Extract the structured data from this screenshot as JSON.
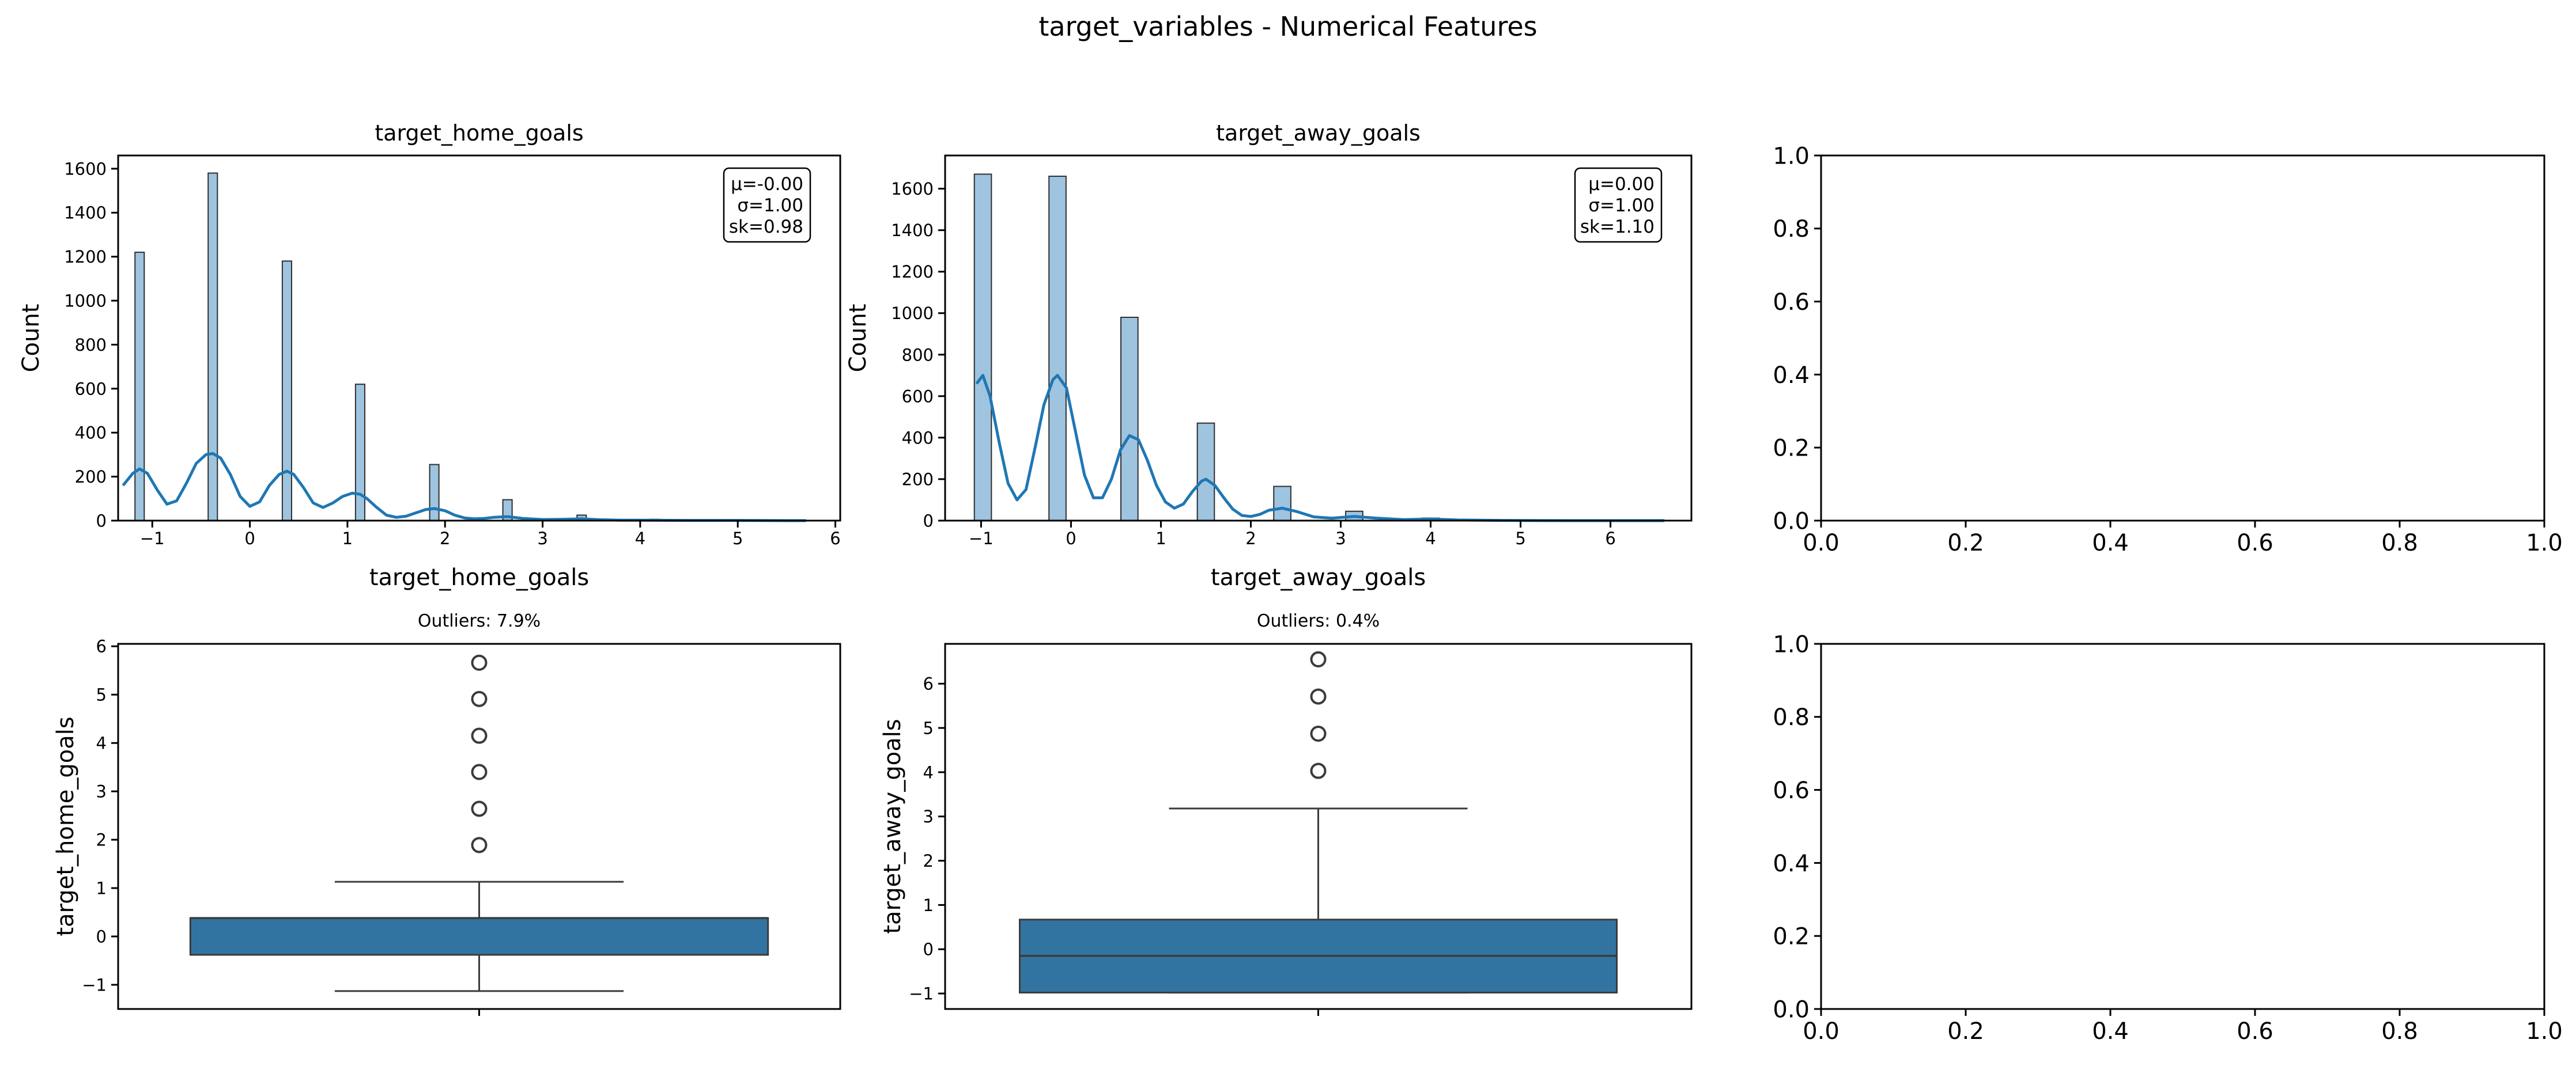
{
  "figure": {
    "title": "target_variables - Numerical Features"
  },
  "colors": {
    "hist_fill": "#9ec4e0",
    "kde_line": "#1f77b4",
    "box_fill": "#3274a1",
    "box_edge": "#3b3b3b",
    "axis": "#000000"
  },
  "chart_data": [
    {
      "type": "bar",
      "subtype": "histogram_with_kde",
      "title": "target_home_goals",
      "xlabel": "target_home_goals",
      "ylabel": "Count",
      "xlim": [
        -1.35,
        6.05
      ],
      "ylim": [
        0,
        1660
      ],
      "xticks": [
        -1,
        0,
        1,
        2,
        3,
        4,
        5,
        6
      ],
      "yticks": [
        0,
        200,
        400,
        600,
        800,
        1000,
        1200,
        1400,
        1600
      ],
      "bin_width": 0.095,
      "bars": [
        {
          "x": -1.13,
          "count": 1220
        },
        {
          "x": -0.38,
          "count": 1580
        },
        {
          "x": 0.38,
          "count": 1180
        },
        {
          "x": 1.13,
          "count": 620
        },
        {
          "x": 1.89,
          "count": 255
        },
        {
          "x": 2.64,
          "count": 95
        },
        {
          "x": 3.4,
          "count": 25
        },
        {
          "x": 4.15,
          "count": 6
        },
        {
          "x": 4.91,
          "count": 2
        },
        {
          "x": 5.66,
          "count": 1
        }
      ],
      "kde": {
        "x": [
          -1.3,
          -1.2,
          -1.13,
          -1.05,
          -0.95,
          -0.85,
          -0.75,
          -0.65,
          -0.55,
          -0.45,
          -0.38,
          -0.3,
          -0.2,
          -0.1,
          0.0,
          0.1,
          0.2,
          0.3,
          0.38,
          0.45,
          0.55,
          0.65,
          0.75,
          0.85,
          0.95,
          1.05,
          1.13,
          1.2,
          1.3,
          1.4,
          1.5,
          1.6,
          1.7,
          1.8,
          1.89,
          2.0,
          2.1,
          2.2,
          2.3,
          2.4,
          2.5,
          2.64,
          2.8,
          3.0,
          3.2,
          3.4,
          3.6,
          3.8,
          4.0,
          4.5,
          5.0,
          5.5,
          5.7
        ],
        "y": [
          160,
          215,
          235,
          215,
          140,
          75,
          90,
          170,
          260,
          300,
          305,
          285,
          210,
          110,
          65,
          85,
          160,
          210,
          225,
          210,
          150,
          80,
          60,
          80,
          110,
          125,
          120,
          100,
          60,
          25,
          15,
          20,
          35,
          50,
          55,
          45,
          25,
          12,
          8,
          10,
          15,
          18,
          10,
          5,
          6,
          8,
          4,
          2,
          2,
          1,
          1,
          0,
          0
        ]
      },
      "annotation": [
        "μ=-0.00",
        "σ=1.00",
        "sk=0.98"
      ]
    },
    {
      "type": "bar",
      "subtype": "histogram_with_kde",
      "title": "target_away_goals",
      "xlabel": "target_away_goals",
      "ylabel": "Count",
      "xlim": [
        -1.4,
        6.9
      ],
      "ylim": [
        0,
        1760
      ],
      "xticks": [
        -1,
        0,
        1,
        2,
        3,
        4,
        5,
        6
      ],
      "yticks": [
        0,
        200,
        400,
        600,
        800,
        1000,
        1200,
        1400,
        1600
      ],
      "bin_width": 0.19,
      "bars": [
        {
          "x": -0.98,
          "count": 1670
        },
        {
          "x": -0.15,
          "count": 1660
        },
        {
          "x": 0.65,
          "count": 980
        },
        {
          "x": 1.5,
          "count": 470
        },
        {
          "x": 2.35,
          "count": 165
        },
        {
          "x": 3.15,
          "count": 45
        },
        {
          "x": 4.0,
          "count": 12
        },
        {
          "x": 4.85,
          "count": 3
        },
        {
          "x": 5.7,
          "count": 1
        },
        {
          "x": 6.55,
          "count": 1
        }
      ],
      "kde": {
        "x": [
          -1.05,
          -0.98,
          -0.9,
          -0.8,
          -0.7,
          -0.6,
          -0.5,
          -0.4,
          -0.3,
          -0.2,
          -0.15,
          -0.05,
          0.05,
          0.15,
          0.25,
          0.35,
          0.45,
          0.55,
          0.65,
          0.75,
          0.85,
          0.95,
          1.05,
          1.15,
          1.25,
          1.35,
          1.45,
          1.5,
          1.6,
          1.7,
          1.8,
          1.9,
          2.0,
          2.1,
          2.2,
          2.35,
          2.5,
          2.7,
          2.9,
          3.15,
          3.4,
          3.7,
          4.0,
          4.3,
          4.8,
          5.5,
          6.2,
          6.6
        ],
        "y": [
          660,
          700,
          600,
          380,
          180,
          100,
          150,
          350,
          560,
          680,
          700,
          640,
          430,
          220,
          110,
          110,
          200,
          340,
          410,
          390,
          290,
          170,
          90,
          60,
          80,
          140,
          190,
          200,
          170,
          110,
          55,
          25,
          20,
          30,
          50,
          60,
          45,
          18,
          12,
          20,
          12,
          5,
          8,
          3,
          1,
          0,
          0,
          0
        ]
      },
      "annotation": [
        "μ=0.00",
        "σ=1.00",
        "sk=1.10"
      ]
    },
    {
      "type": "scatter",
      "subtype": "empty_axes",
      "xlim": [
        0.0,
        1.0
      ],
      "ylim": [
        0.0,
        1.0
      ],
      "xticks": [
        "0.0",
        "0.2",
        "0.4",
        "0.6",
        "0.8",
        "1.0"
      ],
      "yticks": [
        "0.0",
        "0.2",
        "0.4",
        "0.6",
        "0.8",
        "1.0"
      ]
    },
    {
      "type": "box",
      "title": "Outliers: 7.9%",
      "ylabel": "target_home_goals",
      "ylim": [
        -1.5,
        6.05
      ],
      "yticks": [
        -1,
        0,
        1,
        2,
        3,
        4,
        5,
        6
      ],
      "whisker_low": -1.13,
      "q1": -0.38,
      "median": 0.38,
      "q3": 0.38,
      "whisker_high": 1.13,
      "outliers": [
        1.89,
        2.64,
        3.4,
        4.15,
        4.91,
        5.66
      ]
    },
    {
      "type": "box",
      "title": "Outliers: 0.4%",
      "ylabel": "target_away_goals",
      "ylim": [
        -1.35,
        6.9
      ],
      "yticks": [
        -1,
        0,
        1,
        2,
        3,
        4,
        5,
        6
      ],
      "whisker_low": -0.98,
      "q1": -0.98,
      "median": -0.15,
      "q3": 0.67,
      "whisker_high": 3.18,
      "outliers": [
        4.03,
        4.87,
        5.71,
        6.55
      ]
    },
    {
      "type": "scatter",
      "subtype": "empty_axes",
      "xlim": [
        0.0,
        1.0
      ],
      "ylim": [
        0.0,
        1.0
      ],
      "xticks": [
        "0.0",
        "0.2",
        "0.4",
        "0.6",
        "0.8",
        "1.0"
      ],
      "yticks": [
        "0.0",
        "0.2",
        "0.4",
        "0.6",
        "0.8",
        "1.0"
      ]
    }
  ]
}
